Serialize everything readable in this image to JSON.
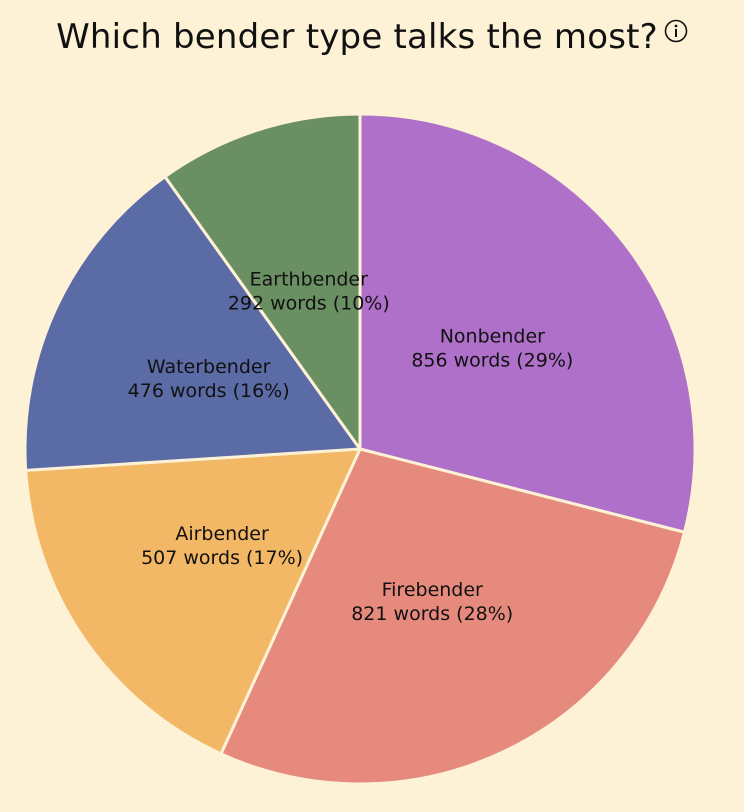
{
  "chart_data": {
    "type": "pie",
    "title": "Which bender type talks the most?",
    "unit": "words",
    "slices": [
      {
        "label": "Nonbender",
        "value": 856,
        "percent": 29,
        "color": "#ae70c9"
      },
      {
        "label": "Firebender",
        "value": 821,
        "percent": 28,
        "color": "#e68a7e"
      },
      {
        "label": "Airbender",
        "value": 507,
        "percent": 17,
        "color": "#f2b865"
      },
      {
        "label": "Waterbender",
        "value": 476,
        "percent": 16,
        "color": "#5b6ba5"
      },
      {
        "label": "Earthbender",
        "value": 292,
        "percent": 10,
        "color": "#6a8f63"
      }
    ]
  },
  "info_icon": "info-circle-icon",
  "background_color": "#fdf1d6",
  "slice_border_color": "#fdf1d6"
}
